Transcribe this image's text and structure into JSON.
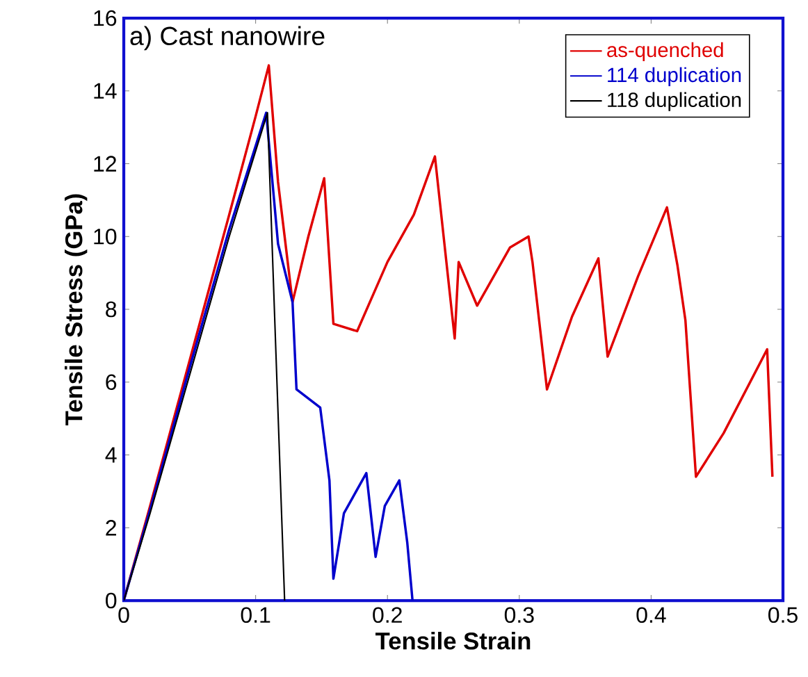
{
  "chart_data": {
    "type": "line",
    "xlabel": "Tensile Strain",
    "ylabel": "Tensile Stress (GPa)",
    "annotations": [
      "a) Cast nanowire"
    ],
    "xlim": [
      0,
      0.5
    ],
    "ylim": [
      0,
      16
    ],
    "xticks": [
      0,
      0.1,
      0.2,
      0.3,
      0.4,
      0.5
    ],
    "yticks": [
      0,
      2,
      4,
      6,
      8,
      10,
      12,
      14,
      16
    ],
    "grid": false,
    "legend": "top right",
    "marker": "none",
    "line_style": "solid",
    "series": [
      {
        "name": "as-quenched",
        "color": "#e00000",
        "x": [
          0,
          0.02,
          0.05,
          0.08,
          0.1,
          0.11,
          0.117,
          0.128,
          0.14,
          0.152,
          0.159,
          0.177,
          0.2,
          0.22,
          0.236,
          0.251,
          0.254,
          0.268,
          0.293,
          0.307,
          0.31,
          0.321,
          0.34,
          0.36,
          0.367,
          0.39,
          0.412,
          0.42,
          0.426,
          0.434,
          0.455,
          0.488,
          0.492
        ],
        "values": [
          0,
          2.6,
          6.6,
          10.6,
          13.3,
          14.7,
          11.5,
          8.2,
          10.0,
          11.6,
          7.6,
          7.4,
          9.3,
          10.6,
          12.2,
          7.2,
          9.3,
          8.1,
          9.7,
          10.0,
          9.3,
          5.8,
          7.8,
          9.4,
          6.7,
          8.9,
          10.8,
          9.2,
          7.7,
          3.4,
          4.6,
          6.9,
          3.4
        ]
      },
      {
        "name": "114 duplication",
        "color": "#0000cc",
        "x": [
          0,
          0.02,
          0.05,
          0.08,
          0.108,
          0.117,
          0.128,
          0.131,
          0.149,
          0.156,
          0.159,
          0.167,
          0.184,
          0.191,
          0.198,
          0.209,
          0.215,
          0.219
        ],
        "values": [
          0,
          2.5,
          6.4,
          10.2,
          13.4,
          9.8,
          8.2,
          5.8,
          5.3,
          3.3,
          0.6,
          2.4,
          3.5,
          1.2,
          2.6,
          3.3,
          1.6,
          0
        ]
      },
      {
        "name": "118 duplication",
        "color": "#000000",
        "x": [
          0,
          0.02,
          0.05,
          0.08,
          0.109,
          0.122
        ],
        "values": [
          0,
          2.4,
          6.2,
          10.0,
          13.4,
          0
        ]
      }
    ]
  }
}
